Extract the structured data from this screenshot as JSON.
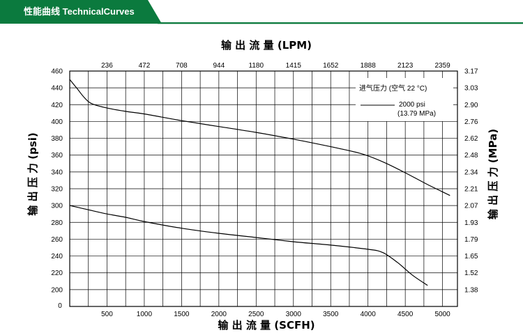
{
  "header": {
    "title": "性能曲线 TechnicalCurves",
    "accent_color": "#0b7a3e"
  },
  "chart_data": {
    "type": "line",
    "title": "",
    "x_bottom": {
      "label": "输 出 流 量 (SCFH)",
      "range": [
        0,
        5200
      ],
      "ticks": [
        500,
        1000,
        1500,
        2000,
        2500,
        3000,
        3500,
        4000,
        4500,
        5000
      ],
      "zero_label": "0"
    },
    "x_top": {
      "label": "输 出 流 量 (LPM)",
      "ticks": [
        "236",
        "472",
        "708",
        "944",
        "1180",
        "1415",
        "1652",
        "1888",
        "2123",
        "2359"
      ]
    },
    "y_left": {
      "label": "输 出 压 力 (psi)",
      "range": [
        180,
        460
      ],
      "ticks": [
        200,
        220,
        240,
        260,
        280,
        300,
        320,
        340,
        360,
        380,
        400,
        420,
        440,
        460
      ]
    },
    "y_right": {
      "label": "输 出 压 力 (MPa)",
      "ticks": [
        "1.38",
        "1.52",
        "1.65",
        "1.79",
        "1.93",
        "2.07",
        "2.21",
        "2.34",
        "2.48",
        "2.62",
        "2.76",
        "2.90",
        "3.03",
        "3.17"
      ]
    },
    "grid": true,
    "legend": {
      "title": "进气压力 (空气 22 °C)",
      "entry_line1": "2000 psi",
      "entry_line2": "(13.79 MPa)",
      "placement": "top-right"
    },
    "series": [
      {
        "x": [
          0,
          100,
          200,
          300,
          500,
          750,
          1000,
          1500,
          2000,
          2500,
          3000,
          3500,
          3900,
          4200,
          4500,
          4800,
          5100
        ],
        "y": [
          450,
          439,
          428,
          421,
          416,
          412,
          409,
          401,
          394,
          387,
          379,
          370,
          362,
          352,
          339,
          325,
          312
        ]
      },
      {
        "x": [
          0,
          250,
          500,
          750,
          1000,
          1500,
          2000,
          2500,
          3000,
          3500,
          4000,
          4200,
          4400,
          4600,
          4800
        ],
        "y": [
          300,
          295,
          290,
          286,
          281,
          273,
          267,
          262,
          257,
          253,
          248,
          244,
          232,
          217,
          205
        ]
      }
    ]
  }
}
